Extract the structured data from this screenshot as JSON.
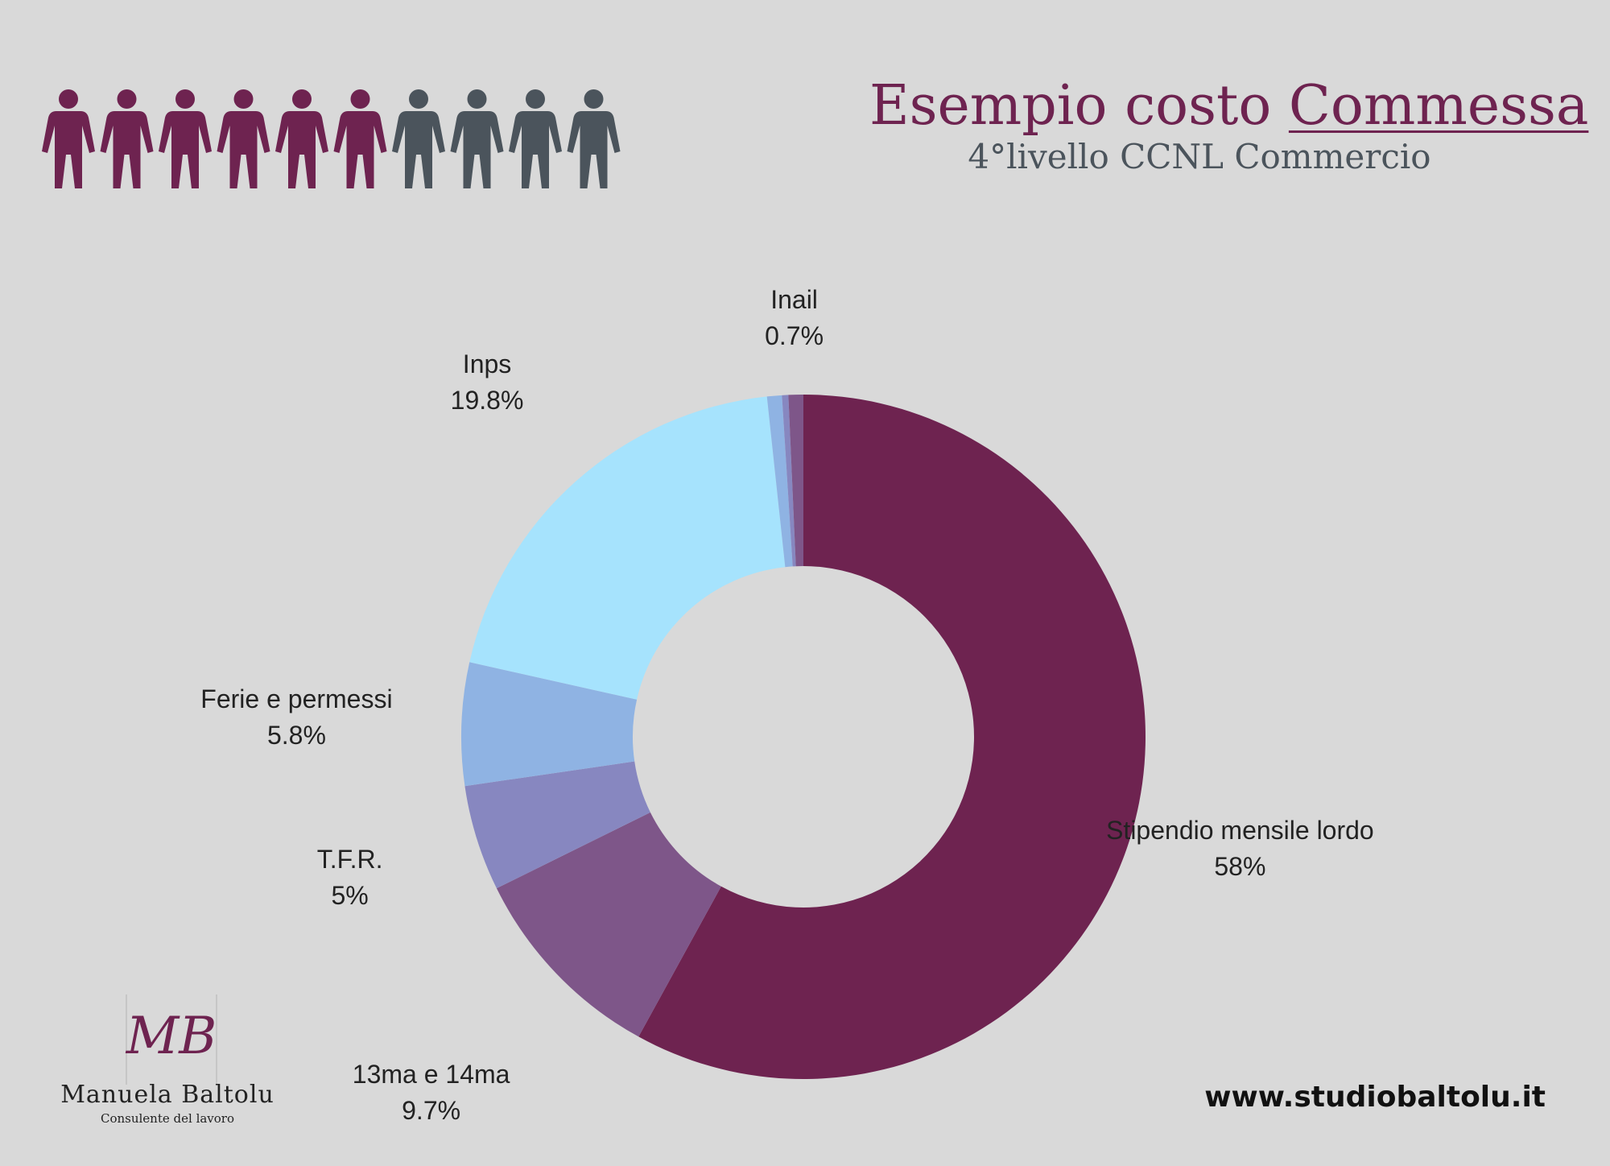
{
  "header": {
    "title_prefix": "Esempio costo ",
    "title_emphasis": "Commessa",
    "subtitle": "4°livello CCNL Commercio"
  },
  "people_icons": {
    "total": 10,
    "highlighted": 6,
    "highlight_color": "#6e2350",
    "base_color": "#4b545c",
    "icon": "person-icon"
  },
  "chart_data": {
    "type": "pie",
    "donut": true,
    "title": "",
    "slices": [
      {
        "label": "Stipendio mensile lordo",
        "value": 58,
        "display": "58%",
        "color": "#6e2350"
      },
      {
        "label": "13ma e 14ma",
        "value": 9.7,
        "display": "9.7%",
        "color": "#7e5689"
      },
      {
        "label": "T.F.R.",
        "value": 5,
        "display": "5%",
        "color": "#8787c0"
      },
      {
        "label": "Ferie e permessi",
        "value": 5.8,
        "display": "5.8%",
        "color": "#8fb3e3"
      },
      {
        "label": "Inps",
        "value": 19.8,
        "display": "19.8%",
        "color": "#a6e3fd"
      },
      {
        "label": "",
        "value": 0.7,
        "display": "",
        "color": "#8fb3e3"
      },
      {
        "label": "",
        "value": 0.3,
        "display": "",
        "color": "#8787c0"
      },
      {
        "label": "Inail",
        "value": 0.7,
        "display": "0.7%",
        "color": "#7e5689"
      }
    ]
  },
  "logo": {
    "monogram": "MB",
    "name": "Manuela Baltolu",
    "subtitle": "Consulente del lavoro"
  },
  "footer": {
    "website": "www.studiobaltolu.it"
  }
}
